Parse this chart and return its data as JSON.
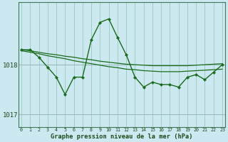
{
  "title": "Graphe pression niveau de la mer (hPa)",
  "bg_color": "#cce8f0",
  "plot_bg_color": "#cce8f0",
  "line_color": "#1a6b1a",
  "grid_color_v": "#99ccbb",
  "grid_color_h": "#99bbbb",
  "yticks": [
    1017,
    1018
  ],
  "ylim": [
    1016.75,
    1019.25
  ],
  "xlim": [
    -0.3,
    23.3
  ],
  "xticks": [
    0,
    1,
    2,
    3,
    4,
    5,
    6,
    7,
    8,
    9,
    10,
    11,
    12,
    13,
    14,
    15,
    16,
    17,
    18,
    19,
    20,
    21,
    22,
    23
  ],
  "series_main": [
    1018.3,
    1018.3,
    1018.15,
    1017.95,
    1017.75,
    1017.4,
    1017.75,
    1017.75,
    1018.5,
    1018.85,
    1018.92,
    1018.55,
    1018.2,
    1017.75,
    1017.55,
    1017.65,
    1017.6,
    1017.6,
    1017.55,
    1017.75,
    1017.8,
    1017.7,
    1017.85,
    1018.0
  ],
  "series_trend1": [
    1018.28,
    1018.25,
    1018.22,
    1018.18,
    1018.15,
    1018.12,
    1018.08,
    1018.05,
    1018.02,
    1017.99,
    1017.96,
    1017.94,
    1017.91,
    1017.9,
    1017.88,
    1017.87,
    1017.86,
    1017.86,
    1017.86,
    1017.87,
    1017.88,
    1017.89,
    1017.9,
    1017.91
  ],
  "series_trend2": [
    1018.3,
    1018.28,
    1018.25,
    1018.22,
    1018.2,
    1018.17,
    1018.15,
    1018.12,
    1018.1,
    1018.07,
    1018.05,
    1018.03,
    1018.01,
    1018.0,
    1017.99,
    1017.98,
    1017.98,
    1017.98,
    1017.98,
    1017.98,
    1017.99,
    1018.0,
    1018.01,
    1018.02
  ]
}
